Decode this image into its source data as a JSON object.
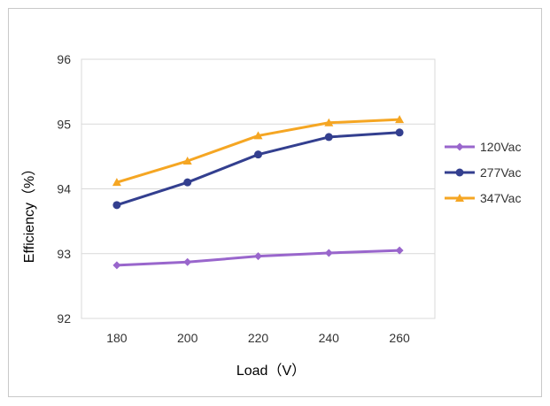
{
  "chart_data": {
    "type": "line",
    "xlabel": "Load（V）",
    "ylabel": "Efficiency（%）",
    "x": [
      180,
      200,
      220,
      240,
      260
    ],
    "xticks": [
      "180",
      "200",
      "220",
      "240",
      "260"
    ],
    "yticks": [
      "92",
      "93",
      "94",
      "95",
      "96"
    ],
    "ylim": [
      92,
      96
    ],
    "grid": "horizontal",
    "legend_position": "right",
    "series": [
      {
        "name": "120Vac",
        "color": "#9966CC",
        "marker": "diamond",
        "values": [
          92.82,
          92.87,
          92.96,
          93.01,
          93.05
        ]
      },
      {
        "name": "277Vac",
        "color": "#333F8F",
        "marker": "circle",
        "values": [
          93.75,
          94.1,
          94.53,
          94.8,
          94.87
        ]
      },
      {
        "name": "347Vac",
        "color": "#F5A623",
        "marker": "triangle",
        "values": [
          94.1,
          94.43,
          94.82,
          95.02,
          95.07
        ]
      }
    ]
  }
}
